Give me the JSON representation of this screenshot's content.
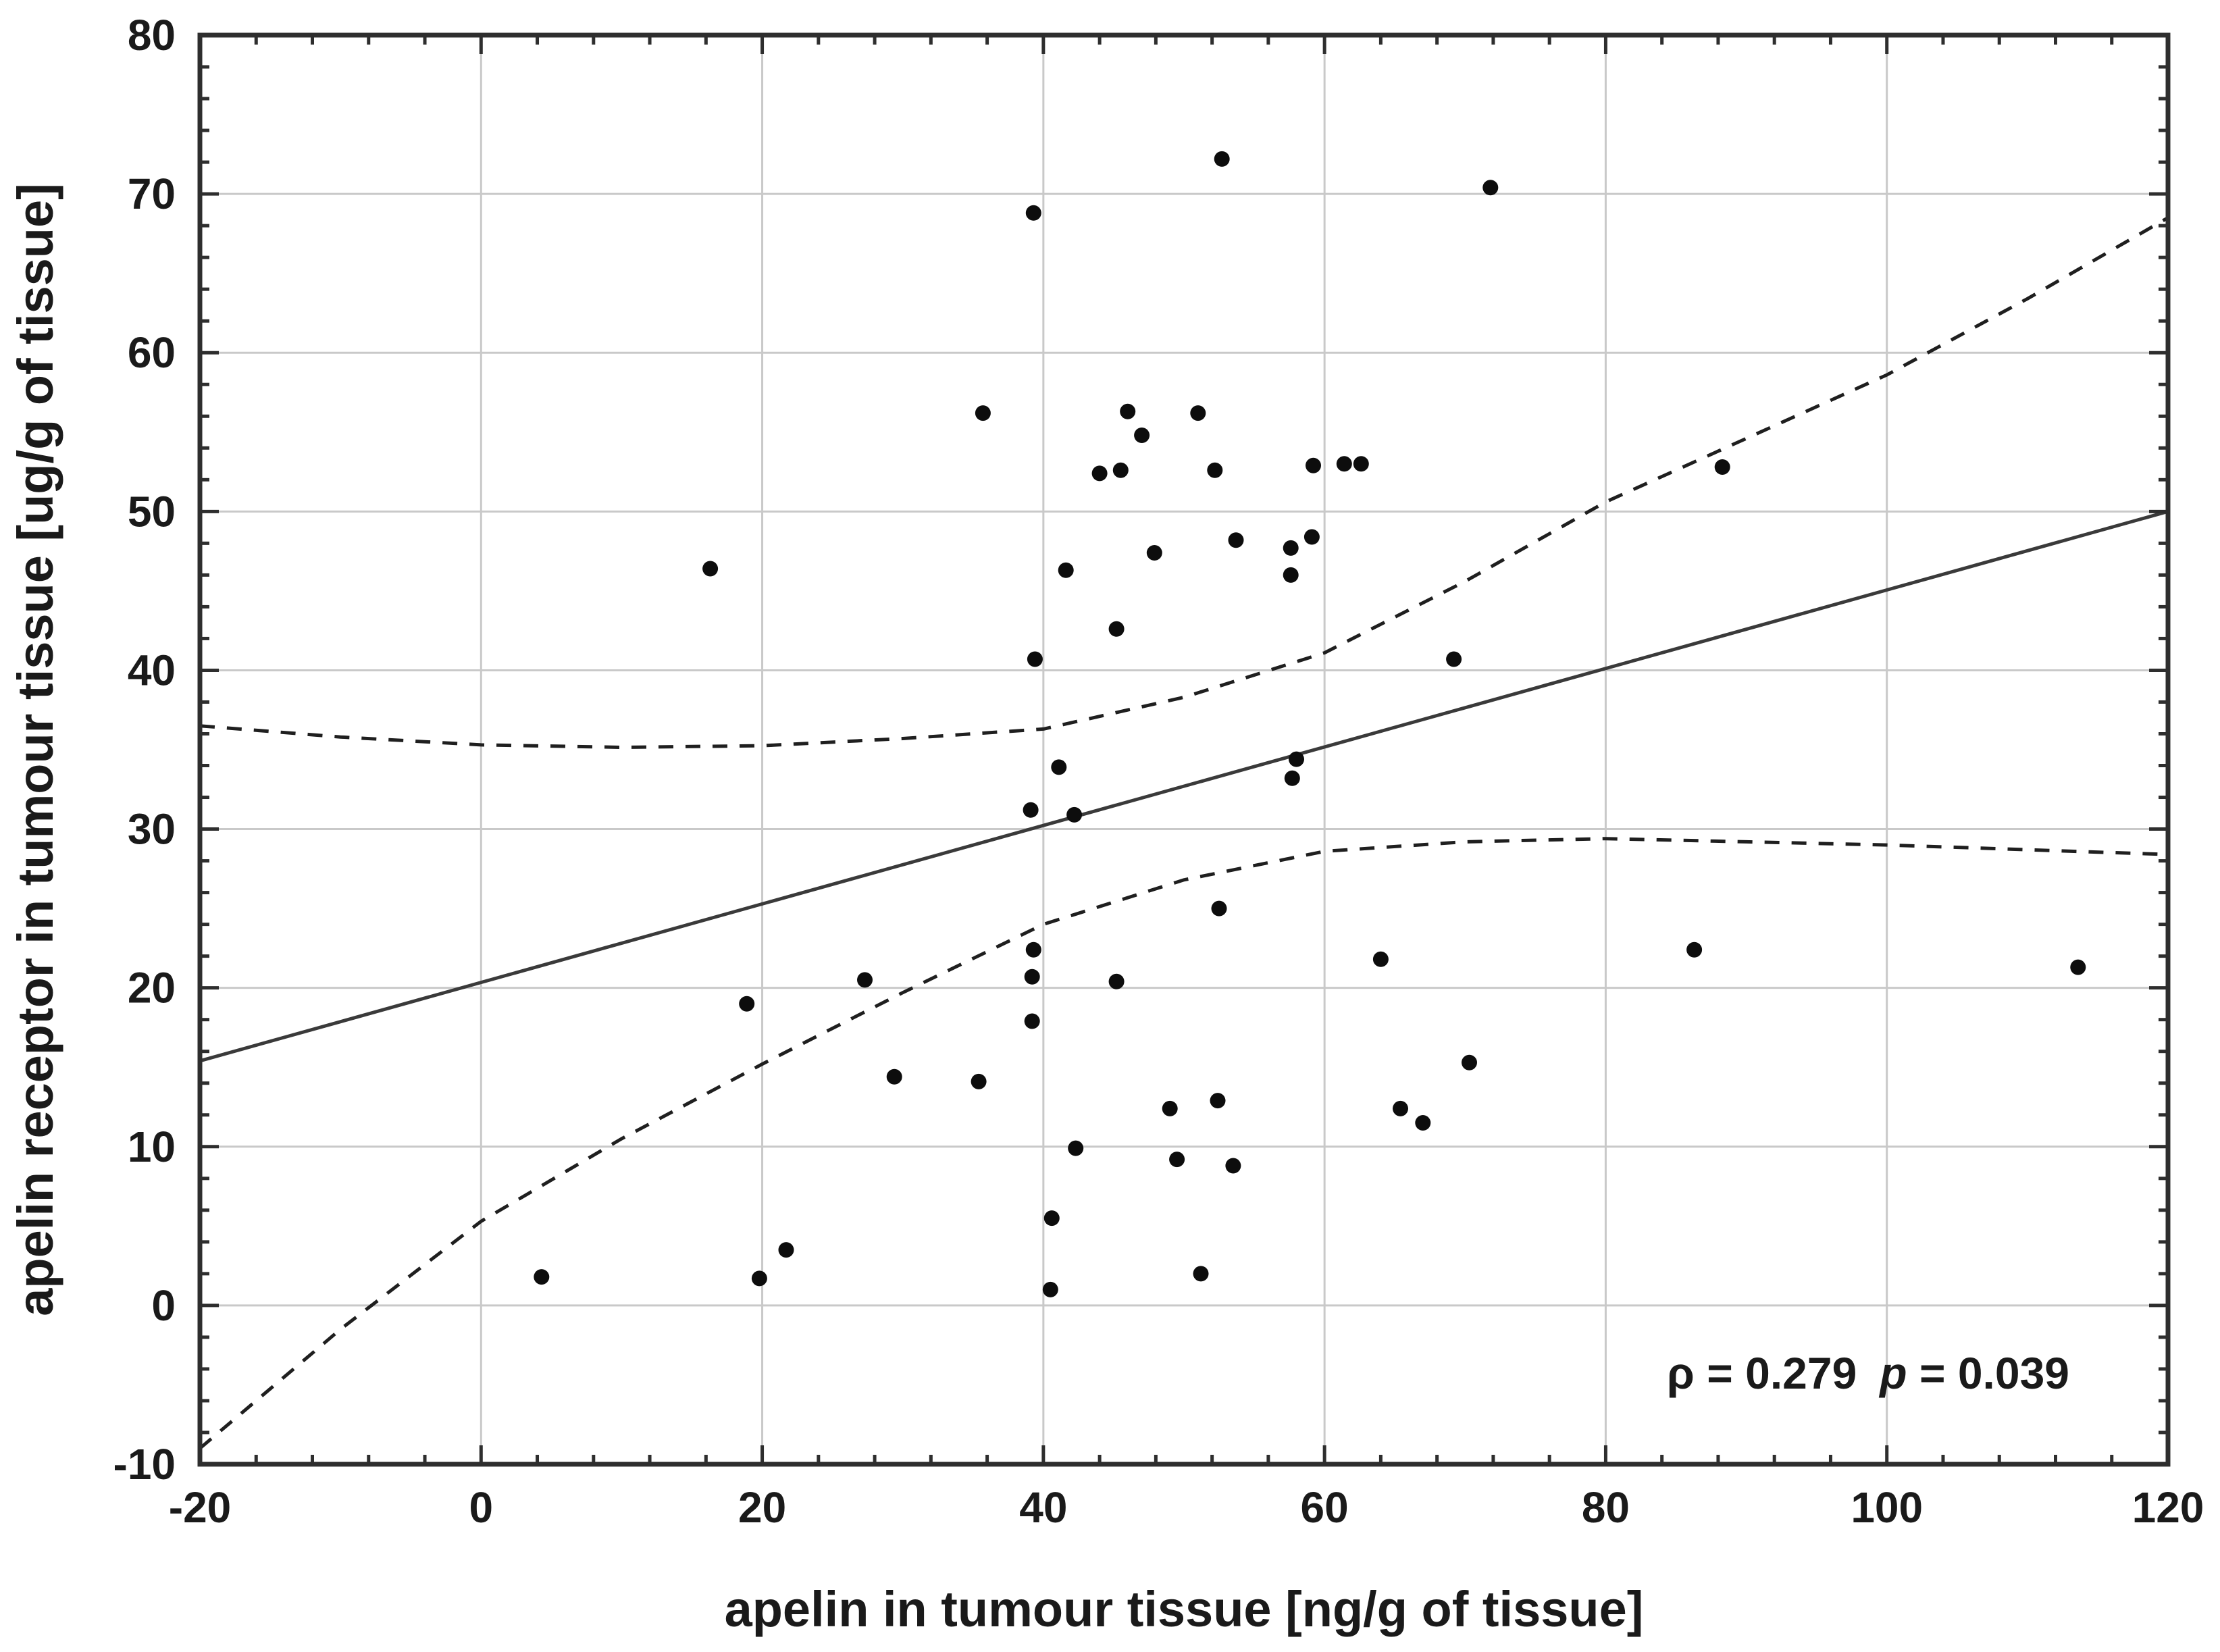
{
  "chart_data": {
    "type": "scatter",
    "title": "",
    "xlabel": "apelin in tumour tissue [ng/g of tissue]",
    "ylabel": "apelin receptor in tumour tissue [ug/g of tissue]",
    "xlim": [
      -20,
      120
    ],
    "ylim": [
      -10,
      80
    ],
    "x_ticks": [
      -20,
      0,
      20,
      40,
      60,
      80,
      100,
      120
    ],
    "y_ticks": [
      -10,
      0,
      10,
      20,
      30,
      40,
      50,
      60,
      70,
      80
    ],
    "x_minor_step": 4,
    "y_minor_step": 2,
    "grid": true,
    "legend": "none",
    "points": [
      [
        4.3,
        1.8
      ],
      [
        16.3,
        46.4
      ],
      [
        18.9,
        19.0
      ],
      [
        19.8,
        1.7
      ],
      [
        21.7,
        3.5
      ],
      [
        27.3,
        20.5
      ],
      [
        29.4,
        14.4
      ],
      [
        35.4,
        14.1
      ],
      [
        35.7,
        56.2
      ],
      [
        39.1,
        31.2
      ],
      [
        39.2,
        17.9
      ],
      [
        39.2,
        20.7
      ],
      [
        39.3,
        22.4
      ],
      [
        39.3,
        68.8
      ],
      [
        39.4,
        40.7
      ],
      [
        40.5,
        1.0
      ],
      [
        40.6,
        5.5
      ],
      [
        41.1,
        33.9
      ],
      [
        41.6,
        46.3
      ],
      [
        42.2,
        30.9
      ],
      [
        42.3,
        9.9
      ],
      [
        44.0,
        52.4
      ],
      [
        45.2,
        20.4
      ],
      [
        45.2,
        42.6
      ],
      [
        45.5,
        52.6
      ],
      [
        46.0,
        56.3
      ],
      [
        47.0,
        54.8
      ],
      [
        47.9,
        47.4
      ],
      [
        49.0,
        12.4
      ],
      [
        49.5,
        9.2
      ],
      [
        51.0,
        56.2
      ],
      [
        51.2,
        2.0
      ],
      [
        52.2,
        52.6
      ],
      [
        52.4,
        12.9
      ],
      [
        52.5,
        25.0
      ],
      [
        52.7,
        72.2
      ],
      [
        53.5,
        8.8
      ],
      [
        53.7,
        48.2
      ],
      [
        57.6,
        46.0
      ],
      [
        57.6,
        47.7
      ],
      [
        57.7,
        33.2
      ],
      [
        58.0,
        34.4
      ],
      [
        59.1,
        48.4
      ],
      [
        59.2,
        52.9
      ],
      [
        61.4,
        53.0
      ],
      [
        62.6,
        53.0
      ],
      [
        64.0,
        21.8
      ],
      [
        65.4,
        12.4
      ],
      [
        67.0,
        11.5
      ],
      [
        69.2,
        40.7
      ],
      [
        70.3,
        15.3
      ],
      [
        71.8,
        70.4
      ],
      [
        86.3,
        22.4
      ],
      [
        88.3,
        52.8
      ],
      [
        113.6,
        21.3
      ]
    ],
    "regression_line": {
      "x": [
        -20,
        120
      ],
      "y": [
        15.4,
        50.0
      ]
    },
    "ci_upper": [
      [
        -20,
        36.5
      ],
      [
        -10,
        35.8
      ],
      [
        0,
        35.3
      ],
      [
        10,
        35.15
      ],
      [
        20,
        35.25
      ],
      [
        30,
        35.7
      ],
      [
        40,
        36.3
      ],
      [
        50,
        38.3
      ],
      [
        60,
        41.1
      ],
      [
        70,
        45.6
      ],
      [
        80,
        50.6
      ],
      [
        90,
        54.6
      ],
      [
        100,
        58.6
      ],
      [
        110,
        63.4
      ],
      [
        120,
        68.5
      ]
    ],
    "ci_lower": [
      [
        -20,
        -9.0
      ],
      [
        -10,
        -1.5
      ],
      [
        0,
        5.3
      ],
      [
        10,
        10.5
      ],
      [
        20,
        15.2
      ],
      [
        30,
        19.7
      ],
      [
        40,
        24.0
      ],
      [
        50,
        26.8
      ],
      [
        60,
        28.6
      ],
      [
        70,
        29.2
      ],
      [
        80,
        29.4
      ],
      [
        90,
        29.2
      ],
      [
        100,
        29.0
      ],
      [
        110,
        28.7
      ],
      [
        120,
        28.4
      ]
    ],
    "annotation": {
      "text": "ρ = 0.279  p = 0.039",
      "rho_label": "ρ",
      "rho_eq": " = 0.279",
      "p_label": "p",
      "p_eq": " = 0.039",
      "x": 113,
      "y": -4.2
    },
    "colors": {
      "point": "#0d0d0d",
      "regression": "#3a3a3a",
      "ci": "#1f1f1f",
      "grid": "#c9c9c9",
      "frame": "#2e2e2e",
      "text": "#1a1a1a",
      "background": "#ffffff"
    }
  }
}
